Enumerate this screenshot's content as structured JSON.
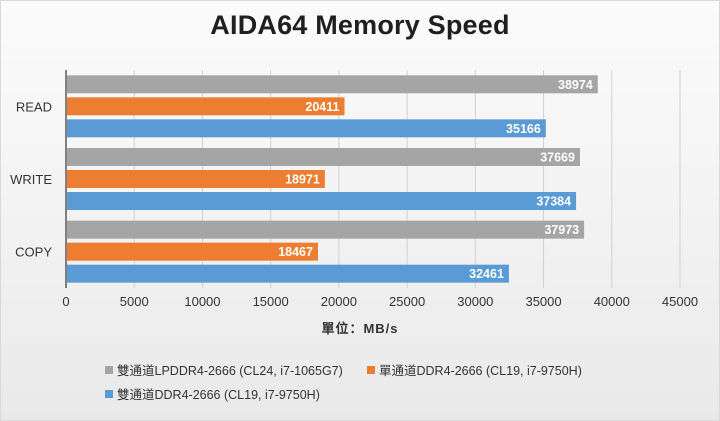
{
  "chart_data": {
    "type": "bar",
    "orientation": "horizontal",
    "title": "AIDA64 Memory Speed",
    "xlabel": "單位：MB/s",
    "ylabel": "",
    "categories": [
      "READ",
      "WRITE",
      "COPY"
    ],
    "xlim": [
      0,
      45000
    ],
    "xticks": [
      0,
      5000,
      10000,
      15000,
      20000,
      25000,
      30000,
      35000,
      40000,
      45000
    ],
    "grid": true,
    "legend_position": "bottom",
    "series": [
      {
        "name": "雙通道LPDDR4-2666 (CL24, i7-1065G7)",
        "color": "#a5a5a5",
        "values": [
          38974,
          37669,
          37973
        ]
      },
      {
        "name": "單通道DDR4-2666 (CL19, i7-9750H)",
        "color": "#ed7d31",
        "values": [
          20411,
          18971,
          18467
        ]
      },
      {
        "name": "雙通道DDR4-2666 (CL19, i7-9750H)",
        "color": "#5b9bd5",
        "values": [
          35166,
          37384,
          32461
        ]
      }
    ]
  }
}
